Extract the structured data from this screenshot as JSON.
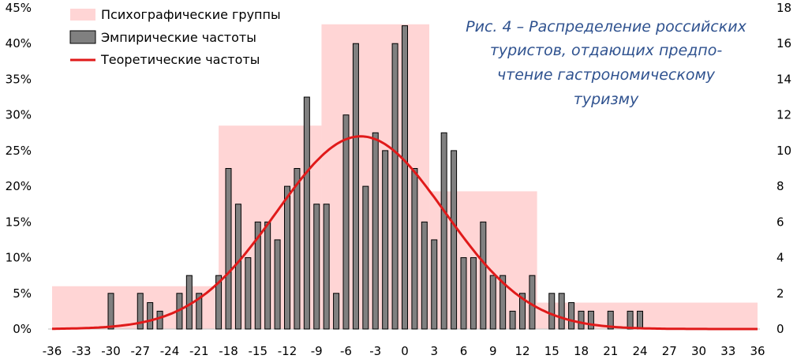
{
  "chart_data": {
    "type": "bar",
    "title_lines": [
      "Рис. 4 – Распределение российских",
      "туристов, отдающих предпо-",
      "чтение гастрономическому",
      "туризму"
    ],
    "x_ticks": [
      -36,
      -33,
      -30,
      -27,
      -24,
      -21,
      -18,
      -15,
      -12,
      -9,
      -6,
      -3,
      0,
      3,
      6,
      9,
      12,
      15,
      18,
      21,
      24,
      27,
      30,
      33,
      36
    ],
    "xlim": [
      -36,
      36
    ],
    "y_left": {
      "lim": [
        0,
        45
      ],
      "ticks": [
        "0%",
        "5%",
        "10%",
        "15%",
        "20%",
        "25%",
        "30%",
        "35%",
        "40%",
        "45%"
      ]
    },
    "y_right": {
      "lim": [
        0,
        18
      ],
      "ticks": [
        "0",
        "2",
        "4",
        "6",
        "8",
        "10",
        "12",
        "14",
        "16",
        "18"
      ]
    },
    "legend": {
      "groups": "Психографические группы",
      "empirical": "Эмпирические частоты",
      "theoretical": "Теоретические частоты"
    },
    "colors": {
      "groups": "#ffd5d5",
      "bars": "#808080",
      "curve": "#e01a1a",
      "title": "#2f528f"
    },
    "psychographic_groups": [
      {
        "x0": -36,
        "x1": -19,
        "value": 6.0
      },
      {
        "x0": -19,
        "x1": -8.5,
        "value": 28.5
      },
      {
        "x0": -8.5,
        "x1": 2.5,
        "value": 42.7
      },
      {
        "x0": 2.5,
        "x1": 13.5,
        "value": 19.3
      },
      {
        "x0": 13.5,
        "x1": 36,
        "value": 3.7
      }
    ],
    "empirical": {
      "x": [
        -30,
        -27,
        -26,
        -25,
        -23,
        -22,
        -21,
        -19,
        -18,
        -17,
        -16,
        -15,
        -14,
        -13,
        -12,
        -11,
        -10,
        -9,
        -8,
        -7,
        -6,
        -5,
        -4,
        -3,
        -2,
        -1,
        0,
        1,
        2,
        3,
        4,
        5,
        6,
        7,
        8,
        9,
        10,
        11,
        12,
        13,
        15,
        16,
        17,
        18,
        19,
        21,
        23,
        24
      ],
      "values": [
        5,
        5,
        3.7,
        2.5,
        5,
        7.5,
        5,
        7.5,
        22.5,
        17.5,
        10,
        15,
        15,
        12.5,
        20,
        22.5,
        32.5,
        17.5,
        17.5,
        5,
        30,
        40,
        20,
        27.5,
        25,
        40,
        42.5,
        22.5,
        15,
        12.5,
        27.5,
        25,
        10,
        10,
        15,
        7.5,
        7.5,
        2.5,
        5,
        7.5,
        5,
        5,
        3.7,
        2.5,
        2.5,
        2.5,
        2.5,
        2.5
      ]
    },
    "theoretical": {
      "type": "line",
      "mean": -4.5,
      "sd": 8.6,
      "peak": 27.0
    }
  }
}
